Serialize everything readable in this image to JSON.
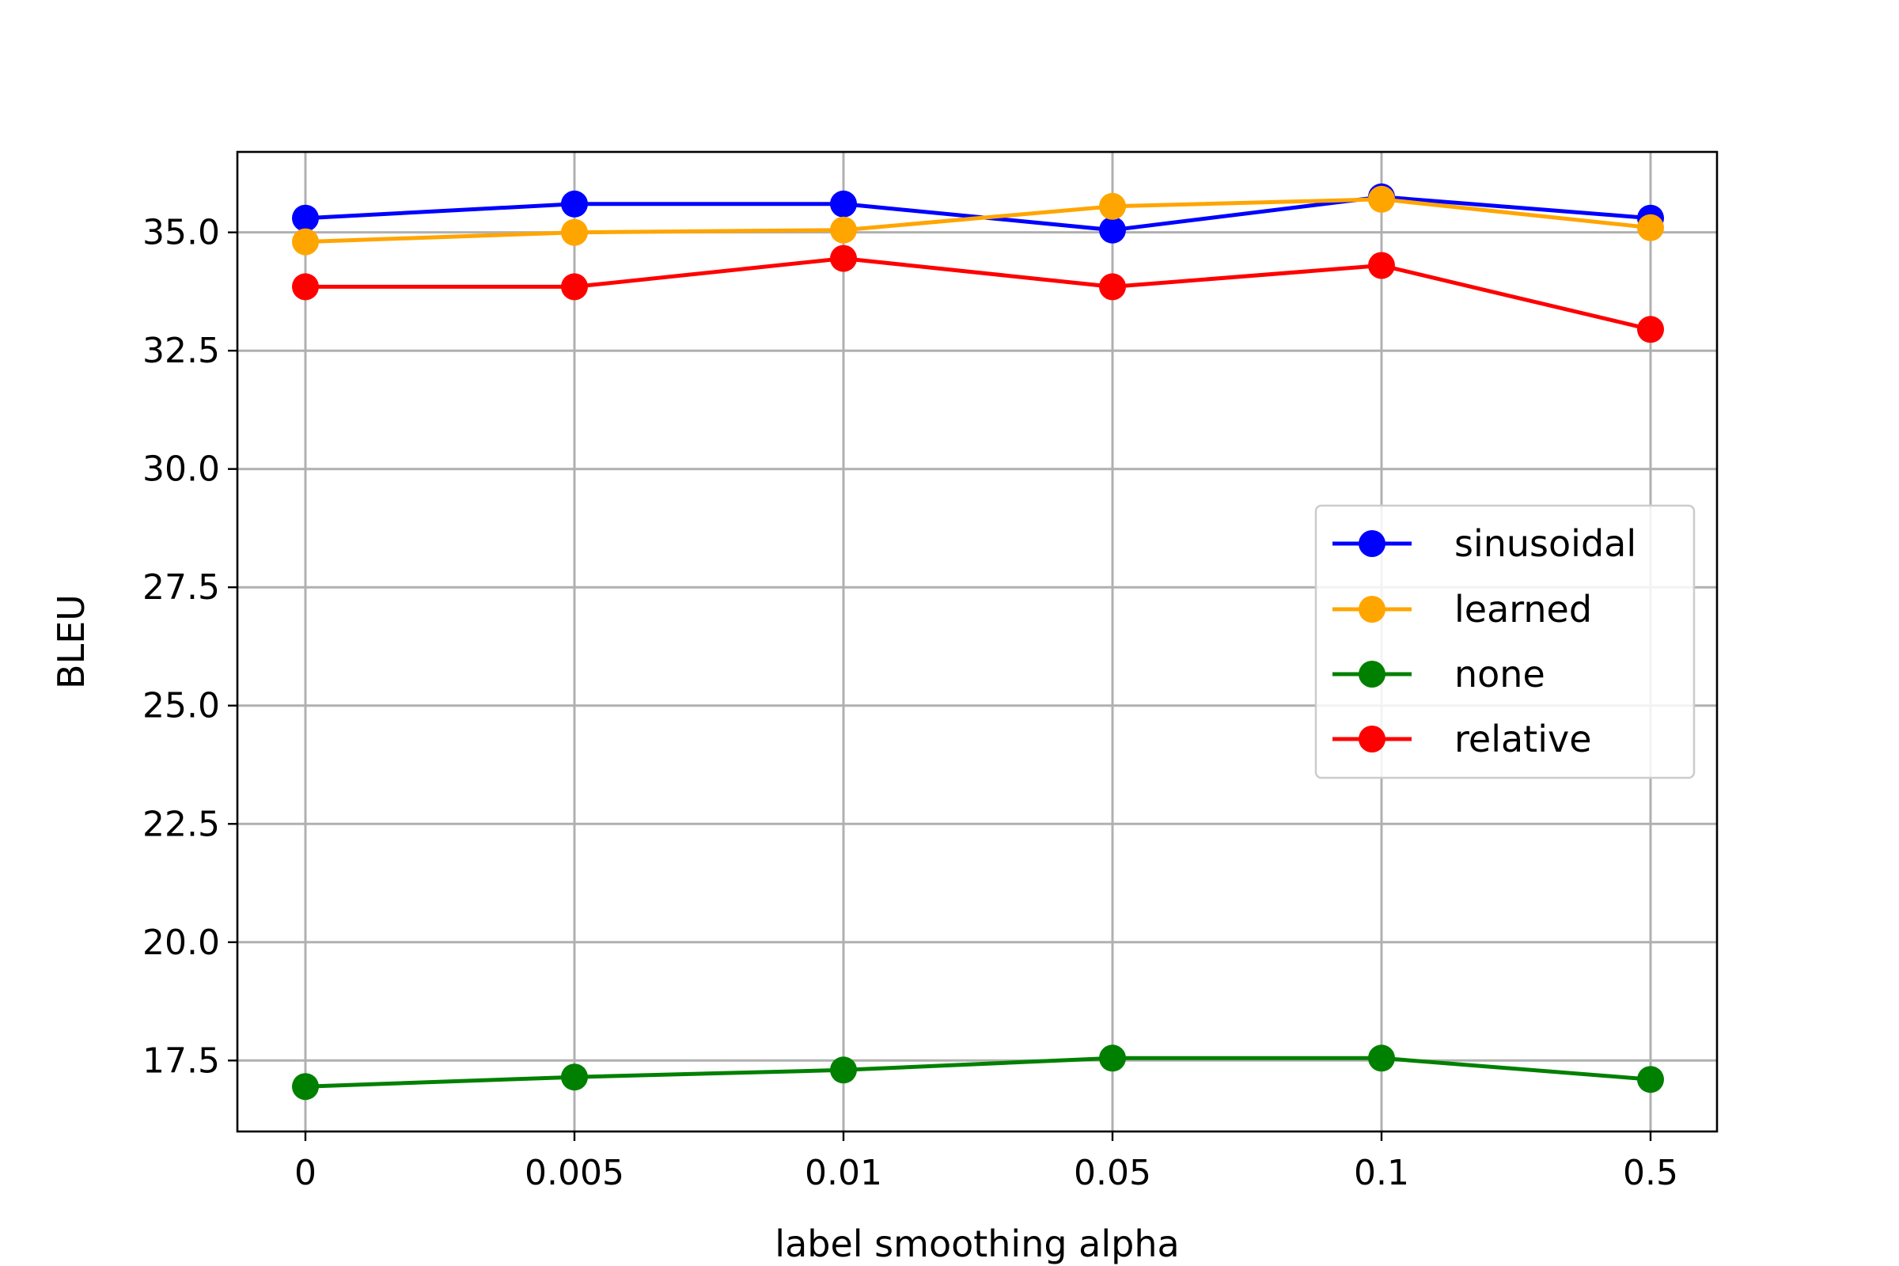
{
  "chart_data": {
    "type": "line",
    "title": "",
    "xlabel": "label smoothing alpha",
    "ylabel": "BLEU",
    "categories": [
      "0",
      "0.005",
      "0.01",
      "0.05",
      "0.1",
      "0.5"
    ],
    "ylim": [
      16.0,
      36.7
    ],
    "yticks": [
      "17.5",
      "20.0",
      "22.5",
      "25.0",
      "27.5",
      "30.0",
      "32.5",
      "35.0"
    ],
    "grid": true,
    "legend_position": "center-right",
    "series": [
      {
        "name": "sinusoidal",
        "color": "#0000ff",
        "values": [
          35.3,
          35.6,
          35.6,
          35.05,
          35.75,
          35.3
        ]
      },
      {
        "name": "learned",
        "color": "#ffa500",
        "values": [
          34.8,
          35.0,
          35.05,
          35.55,
          35.7,
          35.1
        ]
      },
      {
        "name": "none",
        "color": "#008000",
        "values": [
          16.95,
          17.15,
          17.3,
          17.55,
          17.55,
          17.1
        ]
      },
      {
        "name": "relative",
        "color": "#ff0000",
        "values": [
          33.85,
          33.85,
          34.45,
          33.85,
          34.3,
          32.95
        ]
      }
    ]
  }
}
